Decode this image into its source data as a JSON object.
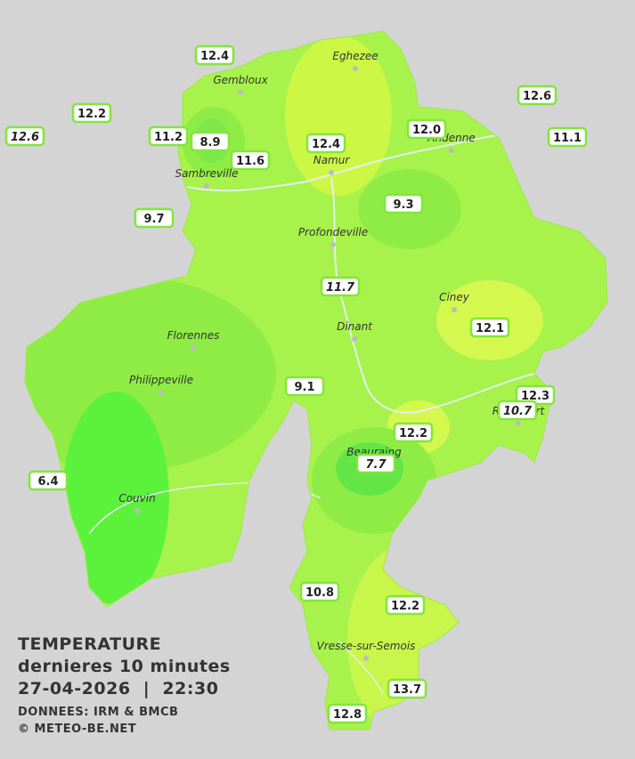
{
  "title": {
    "line1": "TEMPERATURE",
    "line2": "dernieres 10 minutes",
    "line3": "27-04-2026  |  22:30",
    "line4": "DONNEES: IRM & BMCB",
    "line5": "© METEO-BE.NET"
  },
  "cities": [
    "Eghezee",
    "Gembloux",
    "Andenne",
    "Namur",
    "Sambreville",
    "Profondeville",
    "Ciney",
    "Dinant",
    "Florennes",
    "Philippeville",
    "Rochefort",
    "Beauraing",
    "Couvin",
    "Vresse-sur-Semois"
  ],
  "stations": [
    {
      "value": "12.4"
    },
    {
      "value": "12.6"
    },
    {
      "value": "12.2"
    },
    {
      "value": "12.6",
      "italic": true
    },
    {
      "value": "11.2"
    },
    {
      "value": "8.9"
    },
    {
      "value": "12.4"
    },
    {
      "value": "12.0"
    },
    {
      "value": "11.1"
    },
    {
      "value": "11.6"
    },
    {
      "value": "9.3"
    },
    {
      "value": "9.7"
    },
    {
      "value": "11.7",
      "italic": true
    },
    {
      "value": "12.1"
    },
    {
      "value": "9.1"
    },
    {
      "value": "12.3"
    },
    {
      "value": "10.7",
      "italic": true
    },
    {
      "value": "12.2"
    },
    {
      "value": "7.7",
      "italic": true
    },
    {
      "value": "6.4"
    },
    {
      "value": "10.8"
    },
    {
      "value": "12.2"
    },
    {
      "value": "13.7"
    },
    {
      "value": "12.8"
    }
  ]
}
